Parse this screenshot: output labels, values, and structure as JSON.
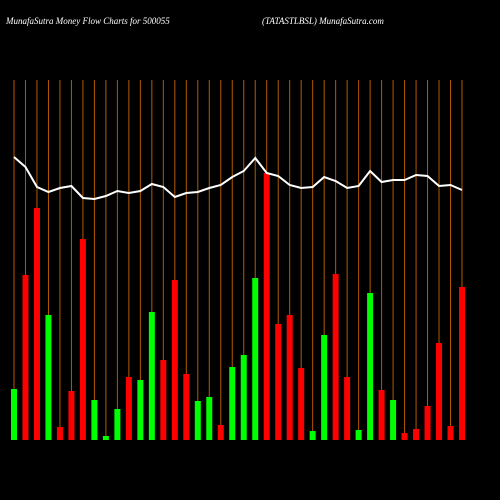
{
  "chart_data": {
    "type": "bar-line",
    "title": "MunafaSutra  Money Flow  Charts for 500055",
    "subtitle": "(TATASTLBSL) MunafaSutra.com",
    "categories": [
      null,
      null,
      null,
      null,
      null,
      null,
      null,
      null,
      null,
      null,
      null,
      null,
      null,
      null,
      null,
      null,
      null,
      null,
      null,
      null,
      null,
      null,
      null,
      null,
      null,
      null,
      null,
      null,
      null,
      null,
      null,
      null,
      null,
      null,
      null,
      null,
      null,
      null,
      null,
      null
    ],
    "bar_values": [
      51,
      165,
      232,
      125,
      13,
      49,
      201,
      40,
      4,
      31,
      63,
      60,
      128,
      80,
      160,
      66,
      39,
      43,
      15,
      73,
      85,
      162,
      267,
      116,
      125,
      72,
      9,
      105,
      166,
      63,
      10,
      147,
      50,
      40,
      7,
      11,
      34,
      97,
      14,
      153
    ],
    "bar_colors": [
      "#00ff00",
      "#ff0000",
      "#ff0000",
      "#00ff00",
      "#ff0000",
      "#ff0000",
      "#ff0000",
      "#00ff00",
      "#00ff00",
      "#00ff00",
      "#ff0000",
      "#00ff00",
      "#00ff00",
      "#ff0000",
      "#ff0000",
      "#ff0000",
      "#00ff00",
      "#00ff00",
      "#ff0000",
      "#00ff00",
      "#00ff00",
      "#00ff00",
      "#ff0000",
      "#ff0000",
      "#ff0000",
      "#ff0000",
      "#00ff00",
      "#00ff00",
      "#ff0000",
      "#ff0000",
      "#00ff00",
      "#00ff00",
      "#ff0000",
      "#00ff00",
      "#ff0000",
      "#ff0000",
      "#ff0000",
      "#ff0000",
      "#ff0000",
      "#ff0000"
    ],
    "line_values": [
      283,
      273,
      253,
      248,
      252,
      254,
      242,
      241,
      244,
      249,
      247,
      249,
      256,
      253,
      243,
      247,
      248,
      252,
      255,
      263,
      269,
      282,
      267,
      264,
      255,
      252,
      253,
      263,
      259,
      252,
      254,
      269,
      258,
      260,
      260,
      265,
      264,
      254,
      255,
      250
    ],
    "line_color": "#ffffff",
    "gridline_color": "#b35900",
    "ylim": [
      0,
      360
    ]
  }
}
